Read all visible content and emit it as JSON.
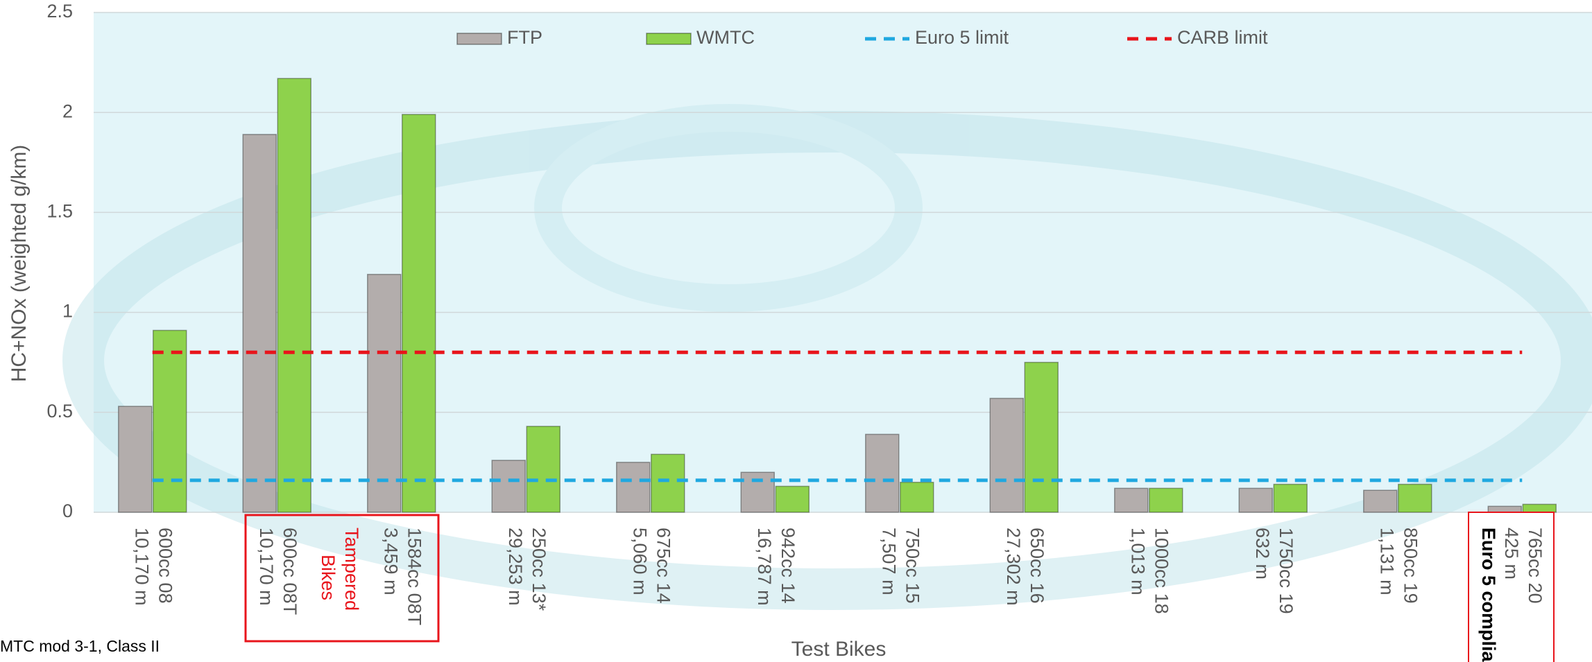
{
  "chart_data": {
    "type": "bar",
    "x_label": "Test Bikes",
    "y_label": "HC+NOx (weighted g/km)",
    "categories": [
      "600cc 08",
      "600cc 08T",
      "1584cc 08T",
      "250cc 13*",
      "675cc 14",
      "942cc 14",
      "750cc 15",
      "650cc 16",
      "1000cc 18",
      "1750cc 19",
      "850cc 19",
      "765cc 20"
    ],
    "mileage": [
      "10,170 m",
      "10,170 m",
      "3,459 m",
      "29,253 m",
      "5,060 m",
      "16,787 m",
      "7,507 m",
      "27,302 m",
      "1,013 m",
      "632 m",
      "1,131 m",
      "425 m"
    ],
    "series": [
      {
        "name": "FTP",
        "type": "bar",
        "color": "#b3adac",
        "values": [
          0.53,
          1.89,
          1.19,
          0.26,
          0.25,
          0.2,
          0.39,
          0.57,
          0.12,
          0.12,
          0.11,
          0.03
        ]
      },
      {
        "name": "WMTC",
        "type": "bar",
        "color": "#8ed24c",
        "values": [
          0.91,
          2.17,
          1.99,
          0.43,
          0.29,
          0.13,
          0.15,
          0.75,
          0.12,
          0.14,
          0.14,
          0.04
        ]
      },
      {
        "name": "Euro 5 limit",
        "type": "line",
        "color": "#1fa8e0",
        "values": [
          0.16,
          0.16,
          0.16,
          0.16,
          0.16,
          0.16,
          0.16,
          0.16,
          0.16,
          0.16,
          0.16,
          0.16
        ]
      },
      {
        "name": "CARB limit",
        "type": "line",
        "color": "#e8141b",
        "values": [
          0.8,
          0.8,
          0.8,
          0.8,
          0.8,
          0.8,
          0.8,
          0.8,
          0.8,
          0.8,
          0.8,
          0.8
        ]
      }
    ],
    "ylim": [
      0,
      2.5
    ],
    "yticks": [
      0,
      0.5,
      1,
      1.5,
      2,
      2.5
    ],
    "grid": true,
    "legend_position": "top",
    "annotations": {
      "tampered": [
        "Tampered",
        "Bikes"
      ],
      "compliant": "Euro 5 complia",
      "footnote": "MTC mod 3-1, Class II"
    }
  }
}
